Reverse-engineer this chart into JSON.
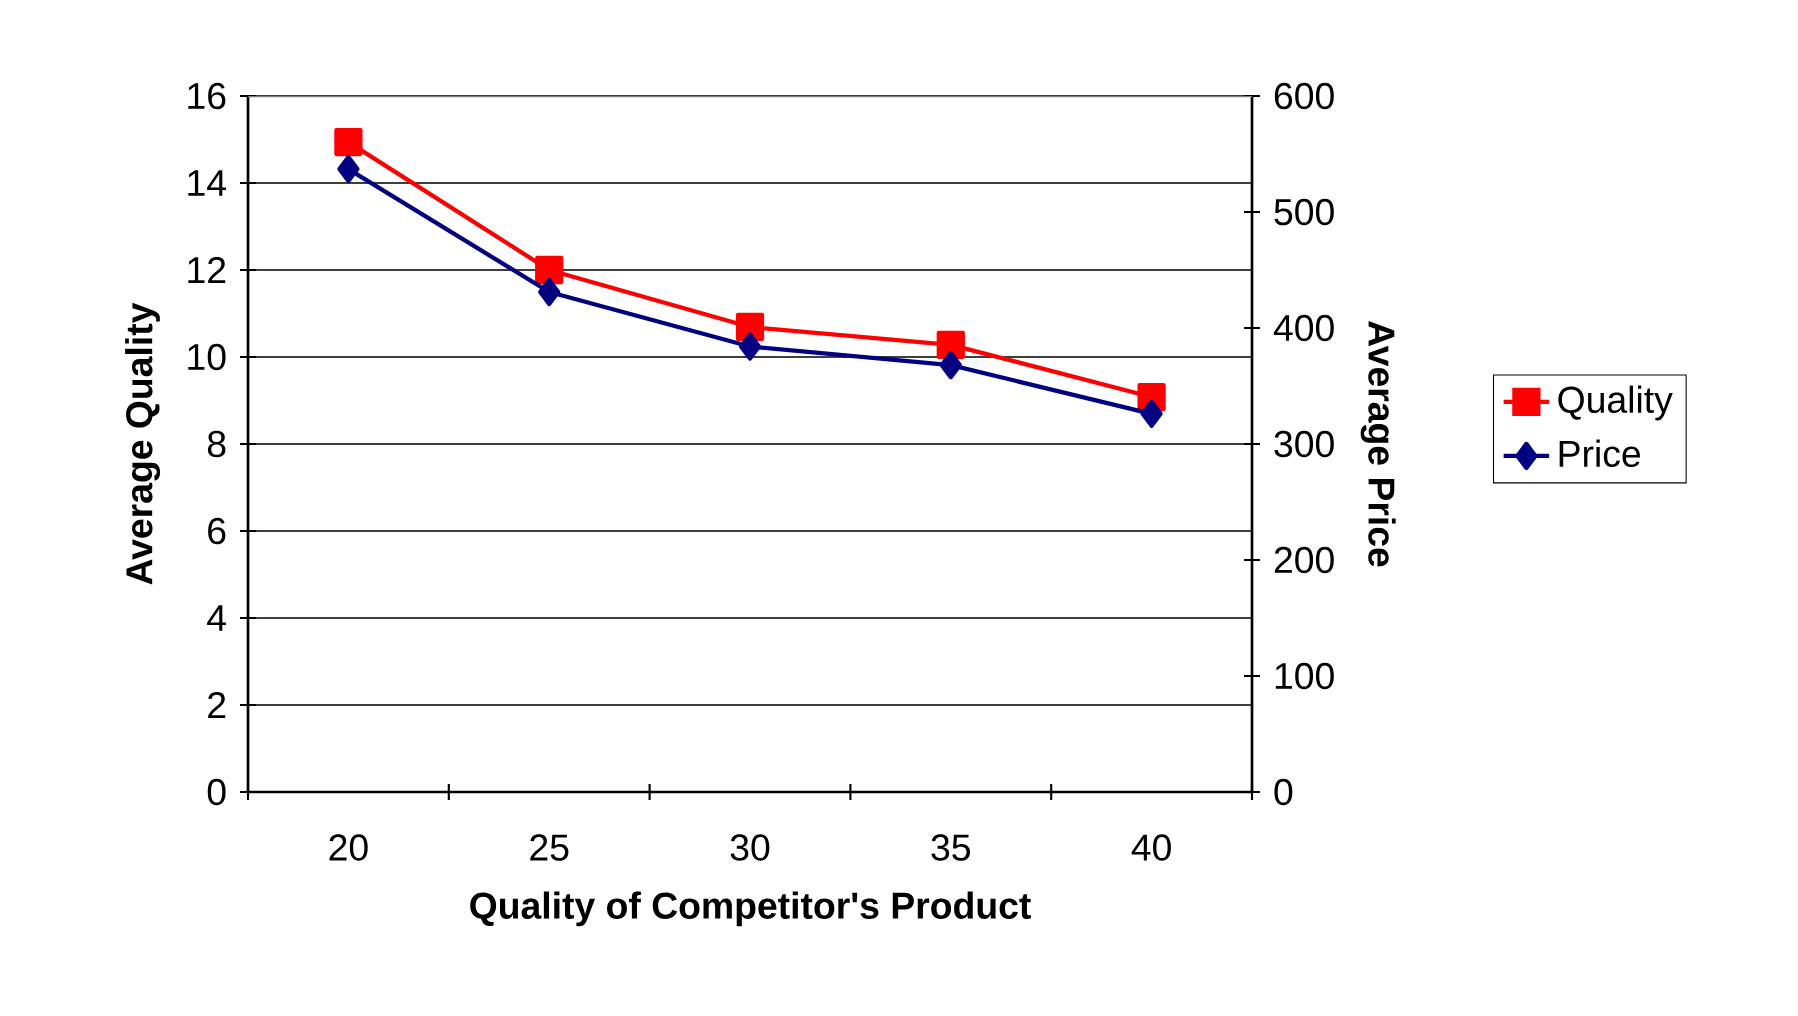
{
  "chart_data": {
    "type": "line",
    "xlabel": "Quality of Competitor's Product",
    "ylabel": "Average Quality",
    "y2label": "Average Price",
    "categories": [
      "20",
      "25",
      "30",
      "35",
      "40"
    ],
    "series": [
      {
        "name": "Quality",
        "color": "#ff0000",
        "marker": "square",
        "values": [
          14.94,
          12.0,
          10.69,
          10.28,
          9.08
        ]
      },
      {
        "name": "Price",
        "color": "#000080",
        "marker": "diamond",
        "axis": "y2",
        "values": [
          537,
          431,
          384,
          368,
          326
        ]
      }
    ],
    "ylim": [
      0,
      16
    ],
    "yticks": [
      0,
      2,
      4,
      6,
      8,
      10,
      12,
      14,
      16
    ],
    "y2lim": [
      0,
      600
    ],
    "y2ticks": [
      0,
      100,
      200,
      300,
      400,
      500,
      600
    ],
    "grid": "y",
    "legend": "right",
    "line_style": "solid"
  }
}
